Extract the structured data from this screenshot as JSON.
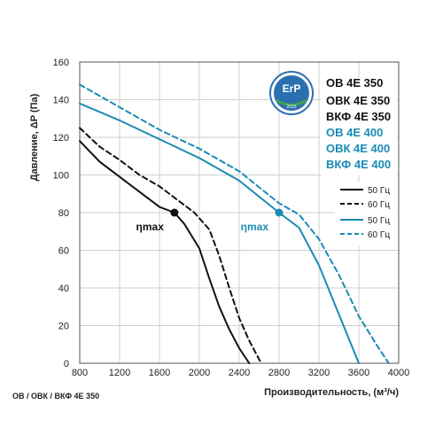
{
  "chart_data": {
    "type": "line",
    "xlabel": "Производительность, (м³/ч)",
    "ylabel": "Давление, ΔP (Па)",
    "xlim": [
      800,
      4000
    ],
    "ylim": [
      0,
      160
    ],
    "x_ticks": [
      "800",
      "1200",
      "1600",
      "2000",
      "2400",
      "2800",
      "3200",
      "3600",
      "4000"
    ],
    "y_ticks": [
      "0",
      "20",
      "40",
      "60",
      "80",
      "100",
      "120",
      "140",
      "160"
    ],
    "grid": true,
    "series": [
      {
        "name": "50 Гц",
        "model_group": "350",
        "color": "#111111",
        "style": "solid",
        "points": [
          [
            800,
            118
          ],
          [
            1000,
            107
          ],
          [
            1200,
            99
          ],
          [
            1400,
            91
          ],
          [
            1600,
            83
          ],
          [
            1750,
            80
          ],
          [
            1850,
            74
          ],
          [
            2000,
            61
          ],
          [
            2100,
            45
          ],
          [
            2200,
            30
          ],
          [
            2300,
            18
          ],
          [
            2400,
            8
          ],
          [
            2500,
            0
          ]
        ]
      },
      {
        "name": "60 Гц",
        "model_group": "350",
        "color": "#111111",
        "style": "dashed",
        "points": [
          [
            800,
            125
          ],
          [
            1000,
            115
          ],
          [
            1200,
            108
          ],
          [
            1400,
            100
          ],
          [
            1600,
            94
          ],
          [
            1800,
            86
          ],
          [
            1950,
            80
          ],
          [
            2100,
            71
          ],
          [
            2200,
            57
          ],
          [
            2300,
            40
          ],
          [
            2400,
            24
          ],
          [
            2500,
            12
          ],
          [
            2620,
            0
          ]
        ]
      },
      {
        "name": "50 Гц",
        "model_group": "400",
        "color": "#1a8bb5",
        "style": "solid",
        "points": [
          [
            800,
            138
          ],
          [
            1200,
            129
          ],
          [
            1600,
            119
          ],
          [
            2000,
            109
          ],
          [
            2400,
            97
          ],
          [
            2800,
            80
          ],
          [
            3000,
            72
          ],
          [
            3200,
            52
          ],
          [
            3400,
            26
          ],
          [
            3600,
            0
          ]
        ]
      },
      {
        "name": "60 Гц",
        "model_group": "400",
        "color": "#1a8bb5",
        "style": "dashed",
        "points": [
          [
            800,
            148
          ],
          [
            1200,
            136
          ],
          [
            1600,
            124
          ],
          [
            2000,
            114
          ],
          [
            2400,
            102
          ],
          [
            2800,
            85
          ],
          [
            3000,
            79
          ],
          [
            3200,
            66
          ],
          [
            3400,
            47
          ],
          [
            3600,
            25
          ],
          [
            3800,
            8
          ],
          [
            3900,
            0
          ]
        ]
      }
    ],
    "markers": [
      {
        "label": "ηmax",
        "x": 1750,
        "y": 80,
        "color": "#111111"
      },
      {
        "label": "ηmax",
        "x": 2800,
        "y": 80,
        "color": "#1a8bb5"
      }
    ],
    "models_350": [
      "ОВ 4Е 350",
      "ОВК 4Е 350",
      "ВКФ 4Е 350"
    ],
    "models_400": [
      "ОВ 4Е 400",
      "ОВК 4Е 400",
      "ВКФ 4Е 400"
    ],
    "legend_placement": "right",
    "legend_labels": [
      "50 Гц",
      "60 Гц",
      "50 Гц",
      "60 Гц"
    ],
    "badge": {
      "main": "ErP",
      "year": "2015"
    },
    "caption": "ОВ / ОВК / ВКФ 4Е 350",
    "colors": {
      "model_350": "#111111",
      "model_400": "#1a8bb5",
      "badge": "#2a6fb0",
      "grid": "#cfcfcf"
    }
  }
}
